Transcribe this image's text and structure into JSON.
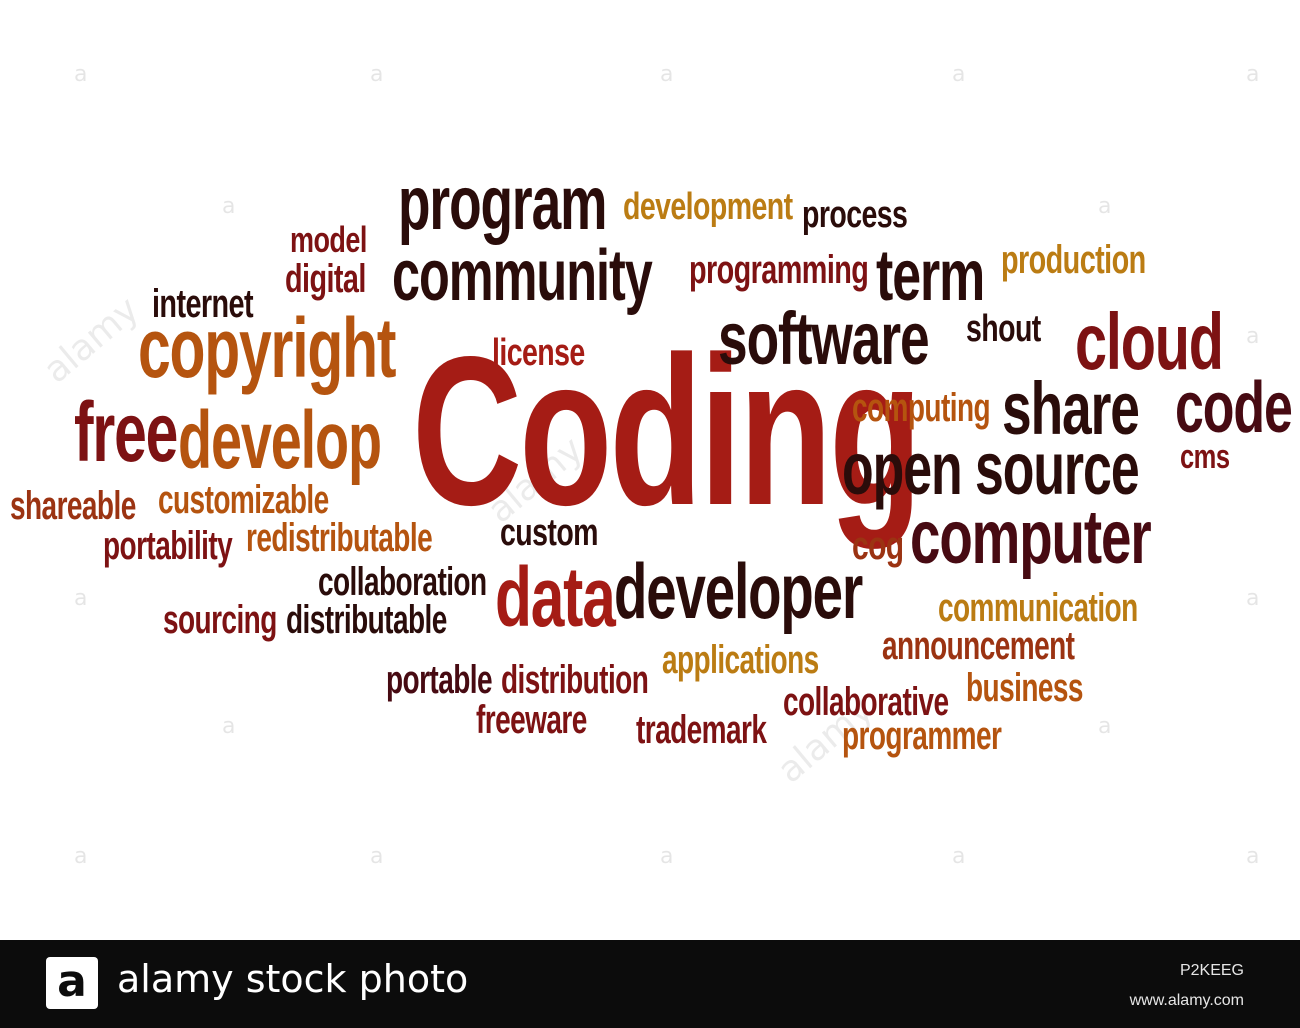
{
  "colors": {
    "red": "#a51c15",
    "darkred": "#7d1213",
    "maroon": "#470a12",
    "darkbrown": "#2a0c0a",
    "brown": "#9b3312",
    "orange": "#b5540f",
    "gold": "#bb7c13",
    "footer_bg": "#0c0c0c"
  },
  "word_cloud": [
    {
      "text": "Coding",
      "color": "red"
    },
    {
      "text": "program",
      "color": "darkbrown"
    },
    {
      "text": "development",
      "color": "gold"
    },
    {
      "text": "process",
      "color": "darkbrown"
    },
    {
      "text": "model",
      "color": "darkred"
    },
    {
      "text": "digital",
      "color": "darkred"
    },
    {
      "text": "community",
      "color": "darkbrown"
    },
    {
      "text": "programming",
      "color": "darkred"
    },
    {
      "text": "term",
      "color": "darkbrown"
    },
    {
      "text": "production",
      "color": "gold"
    },
    {
      "text": "internet",
      "color": "darkbrown"
    },
    {
      "text": "copyright",
      "color": "orange"
    },
    {
      "text": "software",
      "color": "darkbrown"
    },
    {
      "text": "shout",
      "color": "darkbrown"
    },
    {
      "text": "cloud",
      "color": "darkred"
    },
    {
      "text": "license",
      "color": "red"
    },
    {
      "text": "free",
      "color": "darkred"
    },
    {
      "text": "develop",
      "color": "orange"
    },
    {
      "text": "computing",
      "color": "orange"
    },
    {
      "text": "share",
      "color": "darkbrown"
    },
    {
      "text": "code",
      "color": "maroon"
    },
    {
      "text": "open source",
      "color": "darkbrown"
    },
    {
      "text": "cms",
      "color": "darkred"
    },
    {
      "text": "shareable",
      "color": "brown"
    },
    {
      "text": "customizable",
      "color": "orange"
    },
    {
      "text": "portability",
      "color": "darkred"
    },
    {
      "text": "redistributable",
      "color": "orange"
    },
    {
      "text": "custom",
      "color": "darkbrown"
    },
    {
      "text": "cog",
      "color": "brown"
    },
    {
      "text": "computer",
      "color": "maroon"
    },
    {
      "text": "collaboration",
      "color": "darkbrown"
    },
    {
      "text": "data",
      "color": "red"
    },
    {
      "text": "developer",
      "color": "darkbrown"
    },
    {
      "text": "sourcing",
      "color": "darkred"
    },
    {
      "text": "distributable",
      "color": "darkbrown"
    },
    {
      "text": "communication",
      "color": "gold"
    },
    {
      "text": "announcement",
      "color": "brown"
    },
    {
      "text": "applications",
      "color": "gold"
    },
    {
      "text": "portable",
      "color": "maroon"
    },
    {
      "text": "distribution",
      "color": "darkred"
    },
    {
      "text": "business",
      "color": "orange"
    },
    {
      "text": "collaborative",
      "color": "darkred"
    },
    {
      "text": "freeware",
      "color": "darkred"
    },
    {
      "text": "trademark",
      "color": "darkred"
    },
    {
      "text": "programmer",
      "color": "orange"
    }
  ],
  "watermark": {
    "glyph": "a",
    "text": "alamy"
  },
  "footer": {
    "logo_glyph": "a",
    "brand": "alamy stock photo",
    "image_id": "P2KEEG",
    "site": "www.alamy.com"
  }
}
